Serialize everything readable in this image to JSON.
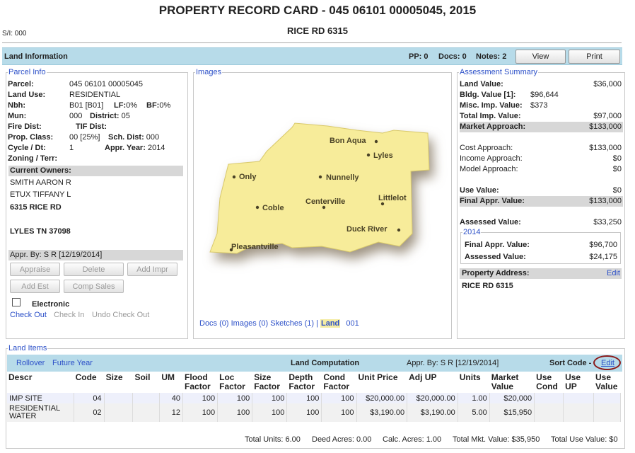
{
  "header": {
    "title": "PROPERTY RECORD CARD - 045 06101 00005045, 2015",
    "address": "RICE RD 6315",
    "si": "S/I: 000"
  },
  "land_info_bar": {
    "title": "Land Information",
    "pp": "PP: 0",
    "docs": "Docs: 0",
    "notes": "Notes: 2",
    "view_label": "View",
    "print_label": "Print"
  },
  "parcel": {
    "legend": "Parcel Info",
    "parcel_label": "Parcel:",
    "parcel_value": "045 06101 00005045",
    "land_use_label": "Land Use:",
    "land_use_value": "RESIDENTIAL",
    "nbh_label": "Nbh:",
    "nbh_value": "B01  [B01]",
    "lf_label": "LF:",
    "lf_value": "0%",
    "bf_label": "BF:",
    "bf_value": "0%",
    "mun_label": "Mun:",
    "mun_value": "000",
    "district_label": "District:",
    "district_value": "05",
    "fire_label": "Fire Dist:",
    "tif_label": "TIF Dist:",
    "prop_class_label": "Prop. Class:",
    "prop_class_value": "00  [25%]",
    "sch_dist_label": "Sch. Dist:",
    "sch_dist_value": "000",
    "cycle_label": "Cycle / Dt:",
    "cycle_value": "1",
    "appr_year_label": "Appr. Year:",
    "appr_year_value": "2014",
    "zoning_label": "Zoning / Terr:",
    "owners_header": "Current Owners:",
    "owner1": "SMITH AARON R",
    "owner2": "ETUX TIFFANY L",
    "owner_addr1": "6315 RICE RD",
    "owner_addr2": "LYLES TN 37098",
    "appr_by": "Appr. By: S R [12/19/2014]",
    "buttons": {
      "appraise": "Appraise",
      "delete": "Delete",
      "add_impr": "Add Impr",
      "add_est": "Add Est",
      "comp_sales": "Comp Sales"
    },
    "electronic_label": "Electronic",
    "check_out": "Check Out",
    "check_in": "Check In",
    "undo_check_out": "Undo Check Out"
  },
  "images": {
    "legend": "Images",
    "map_towns": [
      "Bon Aqua",
      "Lyles",
      "Only",
      "Nunnelly",
      "Centerville",
      "Littlelot",
      "Coble",
      "Duck River",
      "Pleasantville"
    ],
    "docs_link": "Docs (0)",
    "images_link": "Images (0)",
    "sketches_link": "Sketches (1)",
    "separator": "|",
    "land_link": "Land",
    "land_num": "001"
  },
  "assessment": {
    "legend": "Assessment Summary",
    "land_value_label": "Land Value:",
    "land_value": "$36,000",
    "bldg_value_label": "Bldg. Value",
    "bldg_count": "[1]:",
    "bldg_value": "$96,644",
    "misc_label": "Misc. Imp. Value:",
    "misc_value": "$373",
    "total_imp_label": "Total Imp. Value:",
    "total_imp_value": "$97,000",
    "market_label": "Market Approach:",
    "market_value": "$133,000",
    "cost_label": "Cost Approach:",
    "cost_value": "$133,000",
    "income_label": "Income Approach:",
    "income_value": "$0",
    "model_label": "Model Approach:",
    "model_value": "$0",
    "use_label": "Use Value:",
    "use_value": "$0",
    "final_label": "Final Appr. Value:",
    "final_value": "$133,000",
    "assessed_label": "Assessed Value:",
    "assessed_value": "$33,250",
    "prior_year": "2014",
    "prior_final_label": "Final Appr. Value:",
    "prior_final_value": "$96,700",
    "prior_assessed_label": "Assessed Value:",
    "prior_assessed_value": "$24,175",
    "prop_addr_label": "Property Address:",
    "edit_label": "Edit",
    "prop_addr_value": "RICE RD 6315"
  },
  "land_items": {
    "legend": "Land Items",
    "rollover": "Rollover",
    "future_year": "Future Year",
    "computation": "Land Computation",
    "appr_by": "Appr. By: S R [12/19/2014]",
    "sort_code": "Sort Code -",
    "edit": "Edit",
    "columns": [
      "Descr",
      "Code",
      "Size",
      "Soil",
      "UM",
      "Flood Factor",
      "Loc Factor",
      "Size Factor",
      "Depth Factor",
      "Cond Factor",
      "Unit Price",
      "Adj UP",
      "Units",
      "Market Value",
      "Use Cond",
      "Use UP",
      "Use Value"
    ],
    "rows": [
      [
        "IMP SITE",
        "04",
        "",
        "",
        "40",
        "100",
        "100",
        "100",
        "100",
        "100",
        "$20,000.00",
        "$20,000.00",
        "1.00",
        "$20,000",
        "",
        "",
        ""
      ],
      [
        "RESIDENTIAL WATER",
        "02",
        "",
        "",
        "12",
        "100",
        "100",
        "100",
        "100",
        "100",
        "$3,190.00",
        "$3,190.00",
        "5.00",
        "$15,950",
        "",
        "",
        ""
      ]
    ],
    "totals": {
      "total_units": "Total Units: 6.00",
      "deed_acres": "Deed Acres: 0.00",
      "calc_acres": "Calc. Acres: 1.00",
      "total_mkt": "Total Mkt. Value: $35,950",
      "total_use": "Total Use Value: $0"
    }
  },
  "colors": {
    "bar_bg": "#b7dbe9",
    "link": "#2c50c8",
    "map_fill": "#f7ec9a",
    "edit_circle": "#8b1a1a"
  }
}
